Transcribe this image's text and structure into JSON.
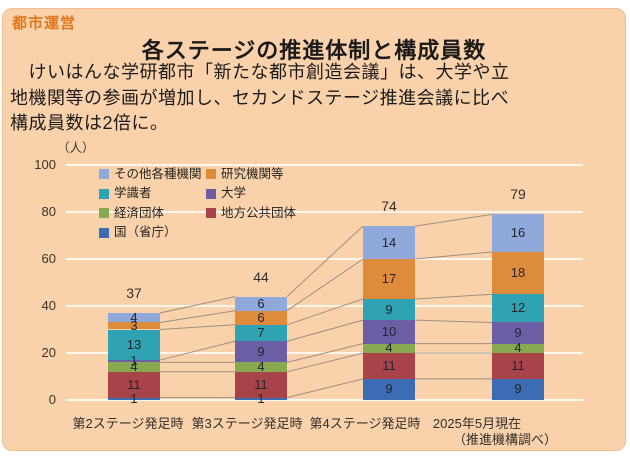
{
  "page": {
    "tag": "都市運営",
    "title": "各ステージの推進体制と構成員数",
    "body_lines": [
      "　けいはんな学研都市「新たな都市創造会議」は、大学や立",
      "地機関等の参画が増加し、セカンドステージ推進会議に比べ",
      "構成員数は2倍に。"
    ]
  },
  "colors": {
    "page_background": "#ffffff",
    "panel_background": "#f9d2ac",
    "accent_orange": "#e2761b",
    "text_dark": "#1d1b19",
    "axis_text": "#3e3228",
    "gridline": "#fdf6ec",
    "connector": "#a08d7f"
  },
  "chart_data": {
    "type": "bar",
    "stacked": true,
    "stack_order": "bottom-to-top",
    "unit_label": "（人）",
    "xlabel": "",
    "ylabel": "",
    "ylim": [
      0,
      100
    ],
    "yticks": [
      0,
      20,
      40,
      60,
      80,
      100
    ],
    "grid": true,
    "categories": [
      "第2ステージ発足時",
      "第3ステージ発足時",
      "第4ステージ発足時",
      "2025年5月現在"
    ],
    "source_note": "（推進機構調べ）",
    "totals": [
      37,
      44,
      74,
      79
    ],
    "series": [
      {
        "name": "国（省庁）",
        "color": "#3c6db4",
        "values": [
          1,
          1,
          9,
          9
        ]
      },
      {
        "name": "地方公共団体",
        "color": "#a8434a",
        "values": [
          11,
          11,
          11,
          11
        ]
      },
      {
        "name": "経済団体",
        "color": "#89a950",
        "values": [
          4,
          4,
          4,
          4
        ]
      },
      {
        "name": "大学",
        "color": "#6c5ea5",
        "values": [
          1,
          9,
          10,
          9
        ]
      },
      {
        "name": "学識者",
        "color": "#2fa2b3",
        "values": [
          13,
          7,
          9,
          12
        ]
      },
      {
        "name": "研究機関等",
        "color": "#df8b3c",
        "values": [
          3,
          6,
          17,
          18
        ]
      },
      {
        "name": "その他各種機関",
        "color": "#8fa9db",
        "values": [
          4,
          6,
          14,
          16
        ]
      }
    ],
    "legend_position": "top-left-inside",
    "legend_columns": [
      [
        "その他各種機関",
        "学識者",
        "経済団体",
        "国（省庁）"
      ],
      [
        "研究機関等",
        "大学",
        "地方公共団体"
      ]
    ]
  }
}
